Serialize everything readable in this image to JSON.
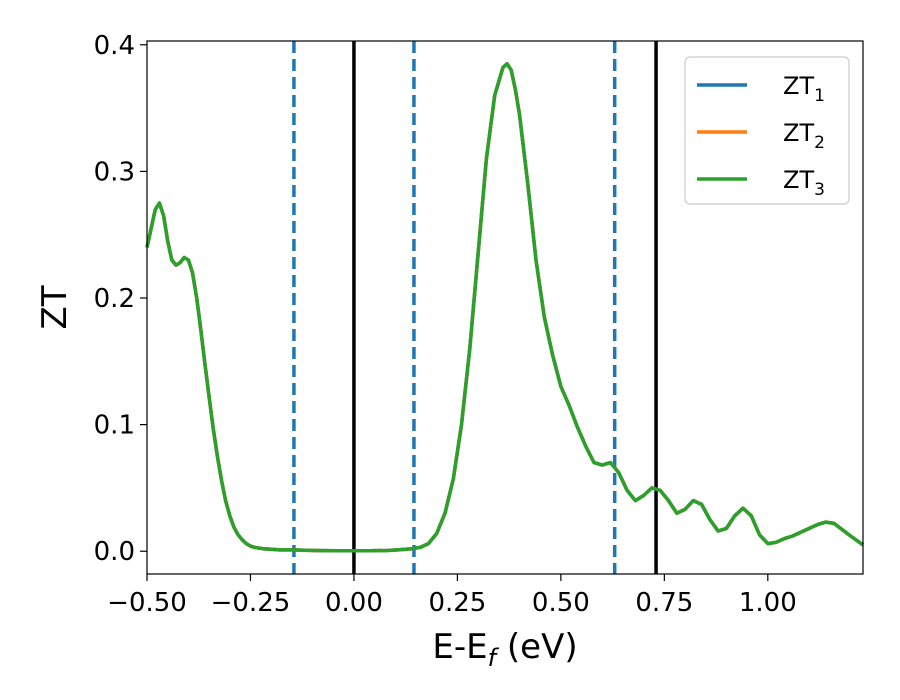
{
  "chart_data": {
    "type": "line",
    "xlabel": "E-E",
    "xlabel_sub": "f",
    "xlabel_unit": " (eV)",
    "ylabel": "ZT",
    "xlim": [
      -0.5,
      1.23
    ],
    "ylim": [
      -0.018,
      0.403
    ],
    "x_ticks": [
      -0.5,
      -0.25,
      0.0,
      0.25,
      0.5,
      0.75,
      1.0
    ],
    "x_tick_labels": [
      "−0.50",
      "−0.25",
      "0.00",
      "0.25",
      "0.50",
      "0.75",
      "1.00"
    ],
    "y_ticks": [
      0.0,
      0.1,
      0.2,
      0.3,
      0.4
    ],
    "y_tick_labels": [
      "0.0",
      "0.1",
      "0.2",
      "0.3",
      "0.4"
    ],
    "grid": false,
    "legend_position": "top-right",
    "vlines_solid": [
      0.0,
      0.73
    ],
    "vlines_dashed": [
      -0.145,
      0.145,
      0.63
    ],
    "vline_solid_color": "#000000",
    "vline_dashed_color": "#1f77b4",
    "series": [
      {
        "name": "ZT",
        "subscript": "1",
        "color": "#1f77b4"
      },
      {
        "name": "ZT",
        "subscript": "2",
        "color": "#ff7f0e"
      },
      {
        "name": "ZT",
        "subscript": "3",
        "color": "#2ca02c"
      }
    ],
    "x": [
      -0.5,
      -0.48,
      -0.47,
      -0.46,
      -0.45,
      -0.44,
      -0.43,
      -0.42,
      -0.41,
      -0.4,
      -0.39,
      -0.38,
      -0.37,
      -0.36,
      -0.35,
      -0.34,
      -0.33,
      -0.32,
      -0.31,
      -0.3,
      -0.29,
      -0.28,
      -0.27,
      -0.26,
      -0.25,
      -0.24,
      -0.22,
      -0.2,
      -0.18,
      -0.15,
      -0.12,
      -0.08,
      -0.04,
      0.0,
      0.04,
      0.08,
      0.11,
      0.14,
      0.16,
      0.18,
      0.2,
      0.22,
      0.24,
      0.26,
      0.28,
      0.3,
      0.32,
      0.34,
      0.36,
      0.37,
      0.38,
      0.39,
      0.4,
      0.42,
      0.44,
      0.46,
      0.48,
      0.5,
      0.52,
      0.54,
      0.56,
      0.58,
      0.6,
      0.62,
      0.64,
      0.66,
      0.68,
      0.7,
      0.72,
      0.74,
      0.76,
      0.78,
      0.8,
      0.82,
      0.84,
      0.86,
      0.88,
      0.9,
      0.92,
      0.94,
      0.96,
      0.98,
      1.0,
      1.02,
      1.04,
      1.06,
      1.08,
      1.1,
      1.12,
      1.14,
      1.16,
      1.18,
      1.2,
      1.23
    ],
    "y": [
      0.24,
      0.27,
      0.275,
      0.265,
      0.245,
      0.23,
      0.226,
      0.228,
      0.232,
      0.23,
      0.22,
      0.2,
      0.175,
      0.148,
      0.122,
      0.097,
      0.075,
      0.056,
      0.04,
      0.028,
      0.019,
      0.013,
      0.009,
      0.006,
      0.004,
      0.003,
      0.002,
      0.0015,
      0.001,
      0.001,
      0.0007,
      0.0005,
      0.0004,
      0.0004,
      0.0004,
      0.0006,
      0.0012,
      0.002,
      0.003,
      0.006,
      0.014,
      0.03,
      0.057,
      0.1,
      0.16,
      0.235,
      0.31,
      0.36,
      0.382,
      0.385,
      0.38,
      0.365,
      0.345,
      0.29,
      0.23,
      0.185,
      0.155,
      0.13,
      0.115,
      0.098,
      0.083,
      0.07,
      0.068,
      0.07,
      0.062,
      0.048,
      0.04,
      0.044,
      0.05,
      0.048,
      0.04,
      0.03,
      0.033,
      0.04,
      0.037,
      0.025,
      0.016,
      0.018,
      0.028,
      0.034,
      0.028,
      0.013,
      0.006,
      0.007,
      0.01,
      0.012,
      0.015,
      0.018,
      0.021,
      0.023,
      0.022,
      0.017,
      0.012,
      0.005
    ]
  }
}
